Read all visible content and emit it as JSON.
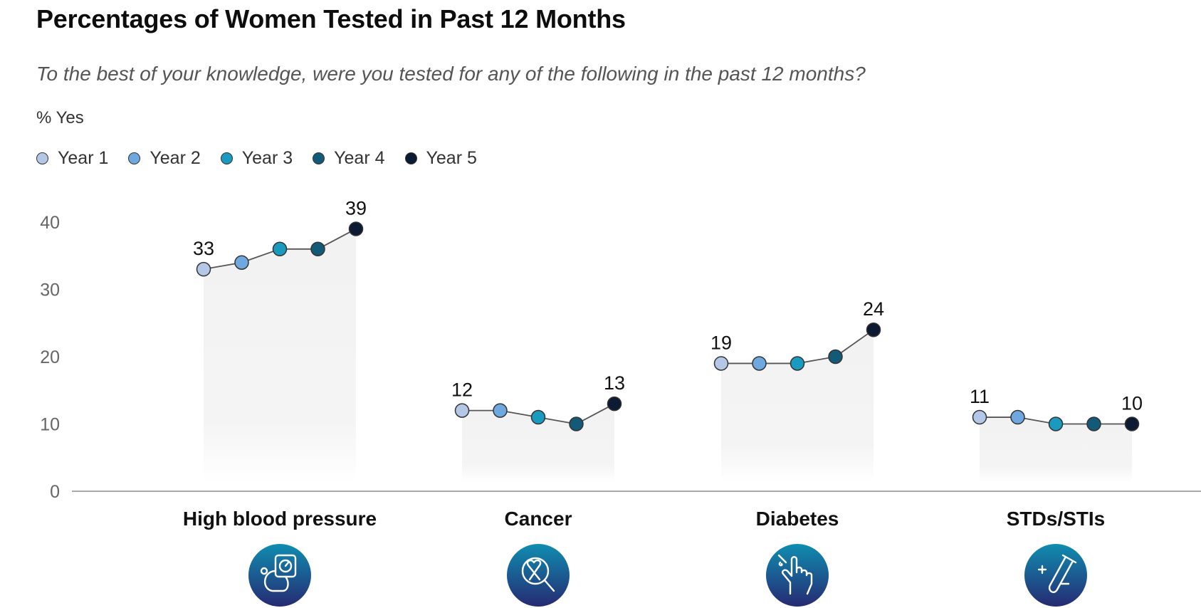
{
  "chart_data": {
    "type": "line",
    "title": "Percentages of Women Tested in Past 12 Months",
    "subtitle": "To the best of your knowledge, were you tested for any of the following in the past 12 months?",
    "ylabel": "% Yes",
    "ylim": [
      0,
      40
    ],
    "yticks": [
      "0",
      "10",
      "20",
      "30",
      "40"
    ],
    "legend_position": "top-left",
    "grid": false,
    "series": [
      {
        "name": "Year 1",
        "color": "#b4c7e7"
      },
      {
        "name": "Year 2",
        "color": "#6ea8de"
      },
      {
        "name": "Year 3",
        "color": "#1b9abf"
      },
      {
        "name": "Year 4",
        "color": "#125a78"
      },
      {
        "name": "Year 5",
        "color": "#0c1a33"
      }
    ],
    "categories": [
      {
        "name": "High blood pressure",
        "icon": "blood-pressure-monitor-icon",
        "values": [
          33,
          34,
          36,
          36,
          39
        ],
        "first_label": "33",
        "last_label": "39"
      },
      {
        "name": "Cancer",
        "icon": "cancer-ribbon-magnifier-icon",
        "values": [
          12,
          12,
          11,
          10,
          13
        ],
        "first_label": "12",
        "last_label": "13"
      },
      {
        "name": "Diabetes",
        "icon": "finger-prick-glucose-icon",
        "values": [
          19,
          19,
          19,
          20,
          24
        ],
        "first_label": "19",
        "last_label": "24"
      },
      {
        "name": "STDs/STIs",
        "icon": "test-tube-icon",
        "values": [
          11,
          11,
          10,
          10,
          10
        ],
        "first_label": "11",
        "last_label": "10"
      }
    ]
  }
}
